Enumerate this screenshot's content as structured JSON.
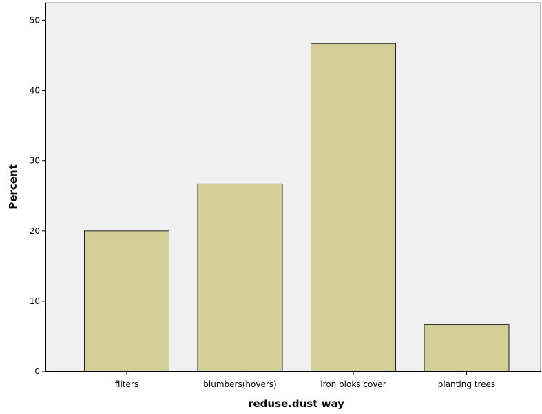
{
  "chart_data": {
    "type": "bar",
    "title": "",
    "xlabel": "reduse.dust way",
    "ylabel": "Percent",
    "categories": [
      "filters",
      "blumbers(hovers)",
      "iron bloks cover",
      "planting trees"
    ],
    "values": [
      20.0,
      26.7,
      46.7,
      6.7
    ],
    "ylim": [
      0,
      52.5
    ],
    "yticks": [
      "0",
      "10",
      "20",
      "30",
      "40",
      "50"
    ],
    "grid": false,
    "legend": "none",
    "colors": {
      "bar_fill": "#d3ce97",
      "bar_stroke": "#222222",
      "plot_background": "#f0f0f0",
      "axis": "#000000"
    }
  }
}
